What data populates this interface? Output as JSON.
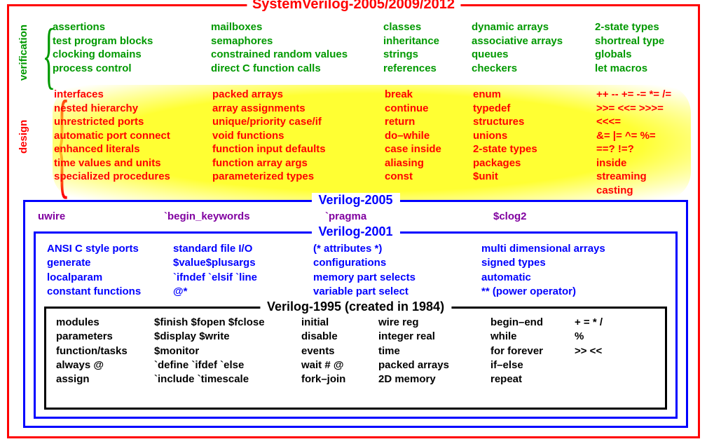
{
  "titles": {
    "sv": "SystemVerilog-2005/2009/2012",
    "v2005": "Verilog-2005",
    "v2001": "Verilog-2001",
    "v1995": "Verilog-1995 (created in 1984)"
  },
  "labels": {
    "verification": "verification",
    "design": "design"
  },
  "colors": {
    "sv_border": "#ff0000",
    "verif_text": "#009900",
    "design_text": "#ff0000",
    "highlight": "#ffff33",
    "v2005_text": "#8000a0",
    "v2001_border": "#0000ff",
    "v1995_border": "#000000"
  },
  "verification": {
    "c1": "assertions\ntest program blocks\nclocking domains\nprocess control",
    "c2": "mailboxes\nsemaphores\nconstrained random values\ndirect C function calls",
    "c3": "classes\ninheritance\nstrings\nreferences",
    "c4": "dynamic arrays\nassociative arrays\nqueues\ncheckers",
    "c5": "2-state types\nshortreal type\nglobals\nlet macros"
  },
  "design": {
    "c1": "interfaces\nnested hierarchy\nunrestricted ports\nautomatic port connect\nenhanced literals\ntime values and units\nspecialized procedures",
    "c2": "packed arrays\narray assignments\nunique/priority case/if\nvoid functions\nfunction input defaults\nfunction array args\nparameterized types",
    "c3": "break\ncontinue\nreturn\ndo–while\ncase inside\naliasing\nconst",
    "c4": "enum\ntypedef\nstructures\nunions\n2-state types\npackages\n$unit",
    "c5": "++  --  +=  -=  *=  /=\n>>=  <<=  >>>=  <<<=\n&=  |=  ^=  %=\n==?  !=?\ninside\nstreaming\ncasting"
  },
  "v2005": {
    "c1": "uwire",
    "c2": "`begin_keywords",
    "c3": "`pragma",
    "c4": "$clog2"
  },
  "v2001": {
    "c1": "ANSI C style ports\ngenerate\nlocalparam\nconstant functions",
    "c2": "standard file I/O\n$value$plusargs\n`ifndef   `elsif   `line\n@*",
    "c3": "(* attributes *)\nconfigurations\nmemory part selects\nvariable part select",
    "c4": "multi dimensional arrays\nsigned types\nautomatic\n** (power operator)"
  },
  "v1995": {
    "c1": "modules\nparameters\nfunction/tasks\nalways  @\nassign",
    "c2": "$finish  $fopen  $fclose\n$display  $write\n$monitor\n`define  `ifdef  `else\n`include  `timescale",
    "c3": "initial\ndisable\nevents\nwait # @\nfork–join",
    "c4": "wire  reg\ninteger  real\ntime\npacked arrays\n2D memory",
    "c5": "begin–end\nwhile\nfor  forever\nif–else\nrepeat",
    "c6": "+   =   *   /\n%\n>>   <<"
  }
}
